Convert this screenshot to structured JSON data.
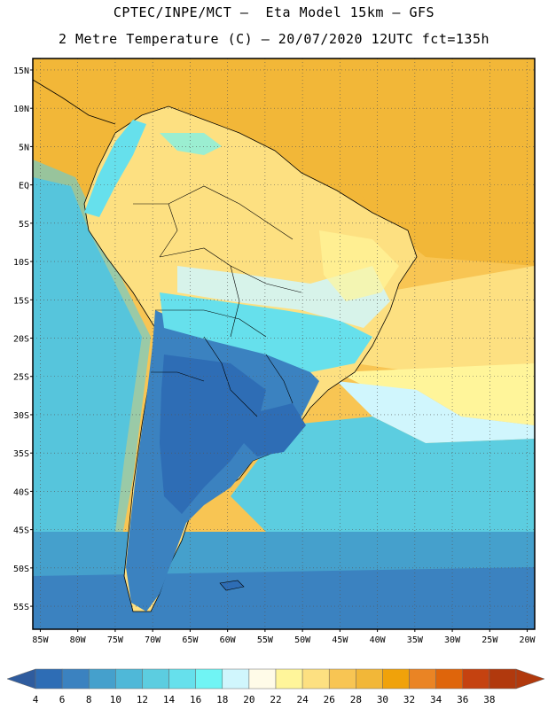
{
  "header": {
    "line1": "CPTEC/INPE/MCT –  Eta Model 15km – GFS",
    "line2": "2 Metre Temperature (C) – 20/07/2020 12UTC fct=135h"
  },
  "map": {
    "lat_labels": [
      "15N",
      "10N",
      "5N",
      "EQ",
      "5S",
      "10S",
      "15S",
      "20S",
      "25S",
      "30S",
      "35S",
      "40S",
      "45S",
      "50S",
      "55S"
    ],
    "lon_labels": [
      "85W",
      "80W",
      "75W",
      "70W",
      "65W",
      "60W",
      "55W",
      "50W",
      "45W",
      "40W",
      "35W",
      "30W",
      "25W",
      "20W"
    ],
    "lat_range": [
      -58,
      16.5
    ],
    "lon_range": [
      -86,
      -19
    ],
    "grid": true
  },
  "colorbar": {
    "levels": [
      "4",
      "6",
      "8",
      "10",
      "12",
      "14",
      "16",
      "18",
      "20",
      "22",
      "24",
      "26",
      "28",
      "30",
      "32",
      "34",
      "36",
      "38"
    ],
    "colors": [
      "#2e6db5",
      "#3b82c0",
      "#45a0cc",
      "#4fb8d8",
      "#5ccde0",
      "#66e0ec",
      "#70f4f4",
      "#d0f6fd",
      "#fffbe8",
      "#fff59a",
      "#fde081",
      "#f8c553",
      "#f2b738",
      "#f0a20a",
      "#ea8424",
      "#df650b",
      "#c54210",
      "#b1390d",
      "#2f5c9e"
    ]
  }
}
